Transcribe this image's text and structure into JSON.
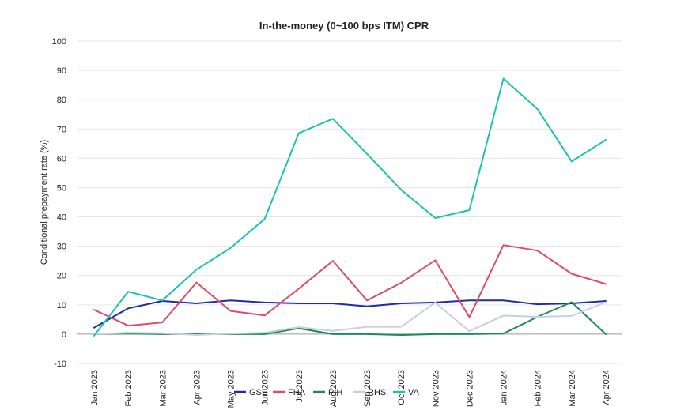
{
  "chart_data": {
    "type": "line",
    "title": "In-the-money (0~100 bps ITM) CPR",
    "ylabel": "Conditional prepayment rate (%)",
    "xlabel": "",
    "ylim": [
      -10,
      100
    ],
    "yticks": [
      -10,
      0,
      10,
      20,
      30,
      40,
      50,
      60,
      70,
      80,
      90,
      100
    ],
    "grid": "horizontal",
    "legend_position": "bottom",
    "categories": [
      "Jan 2023",
      "Feb 2023",
      "Mar 2023",
      "Apr 2023",
      "May 2023",
      "Jun 2023",
      "Jul 2023",
      "Aug 2023",
      "Sep 2023",
      "Oct 2023",
      "Nov 2023",
      "Dec 2023",
      "Jan 2024",
      "Feb 2024",
      "Mar 2024",
      "Apr 2024"
    ],
    "series": [
      {
        "name": "GSE",
        "color": "#1f2d9e",
        "values": [
          2.2,
          8.8,
          11.3,
          10.5,
          11.5,
          10.8,
          10.5,
          10.5,
          9.5,
          10.5,
          10.8,
          11.5,
          11.5,
          10.2,
          10.5,
          11.3
        ]
      },
      {
        "name": "FHA",
        "color": "#e04b67",
        "values": [
          8.3,
          2.9,
          4.0,
          17.6,
          7.9,
          6.4,
          15.5,
          25.0,
          11.5,
          17.5,
          25.2,
          5.8,
          30.4,
          28.5,
          20.6,
          17.1
        ]
      },
      {
        "name": "PIH",
        "color": "#1a8a5a",
        "values": [
          0.0,
          0.2,
          0.0,
          0.0,
          0.0,
          0.0,
          2.0,
          0.0,
          0.0,
          -0.3,
          0.0,
          0.0,
          0.2,
          5.9,
          10.9,
          0.0
        ]
      },
      {
        "name": "RHS",
        "color": "#c8cfdf",
        "values": [
          0.0,
          0.5,
          0.3,
          -0.3,
          0.2,
          0.5,
          2.4,
          1.1,
          2.5,
          2.5,
          10.8,
          1.0,
          6.3,
          5.9,
          6.2,
          10.9
        ]
      },
      {
        "name": "VA",
        "color": "#1cc3b4",
        "values": [
          -0.5,
          14.5,
          11.5,
          22.0,
          29.4,
          39.3,
          68.6,
          73.5,
          61.5,
          49.3,
          39.6,
          42.3,
          87.2,
          76.8,
          58.9,
          66.3
        ]
      }
    ]
  }
}
